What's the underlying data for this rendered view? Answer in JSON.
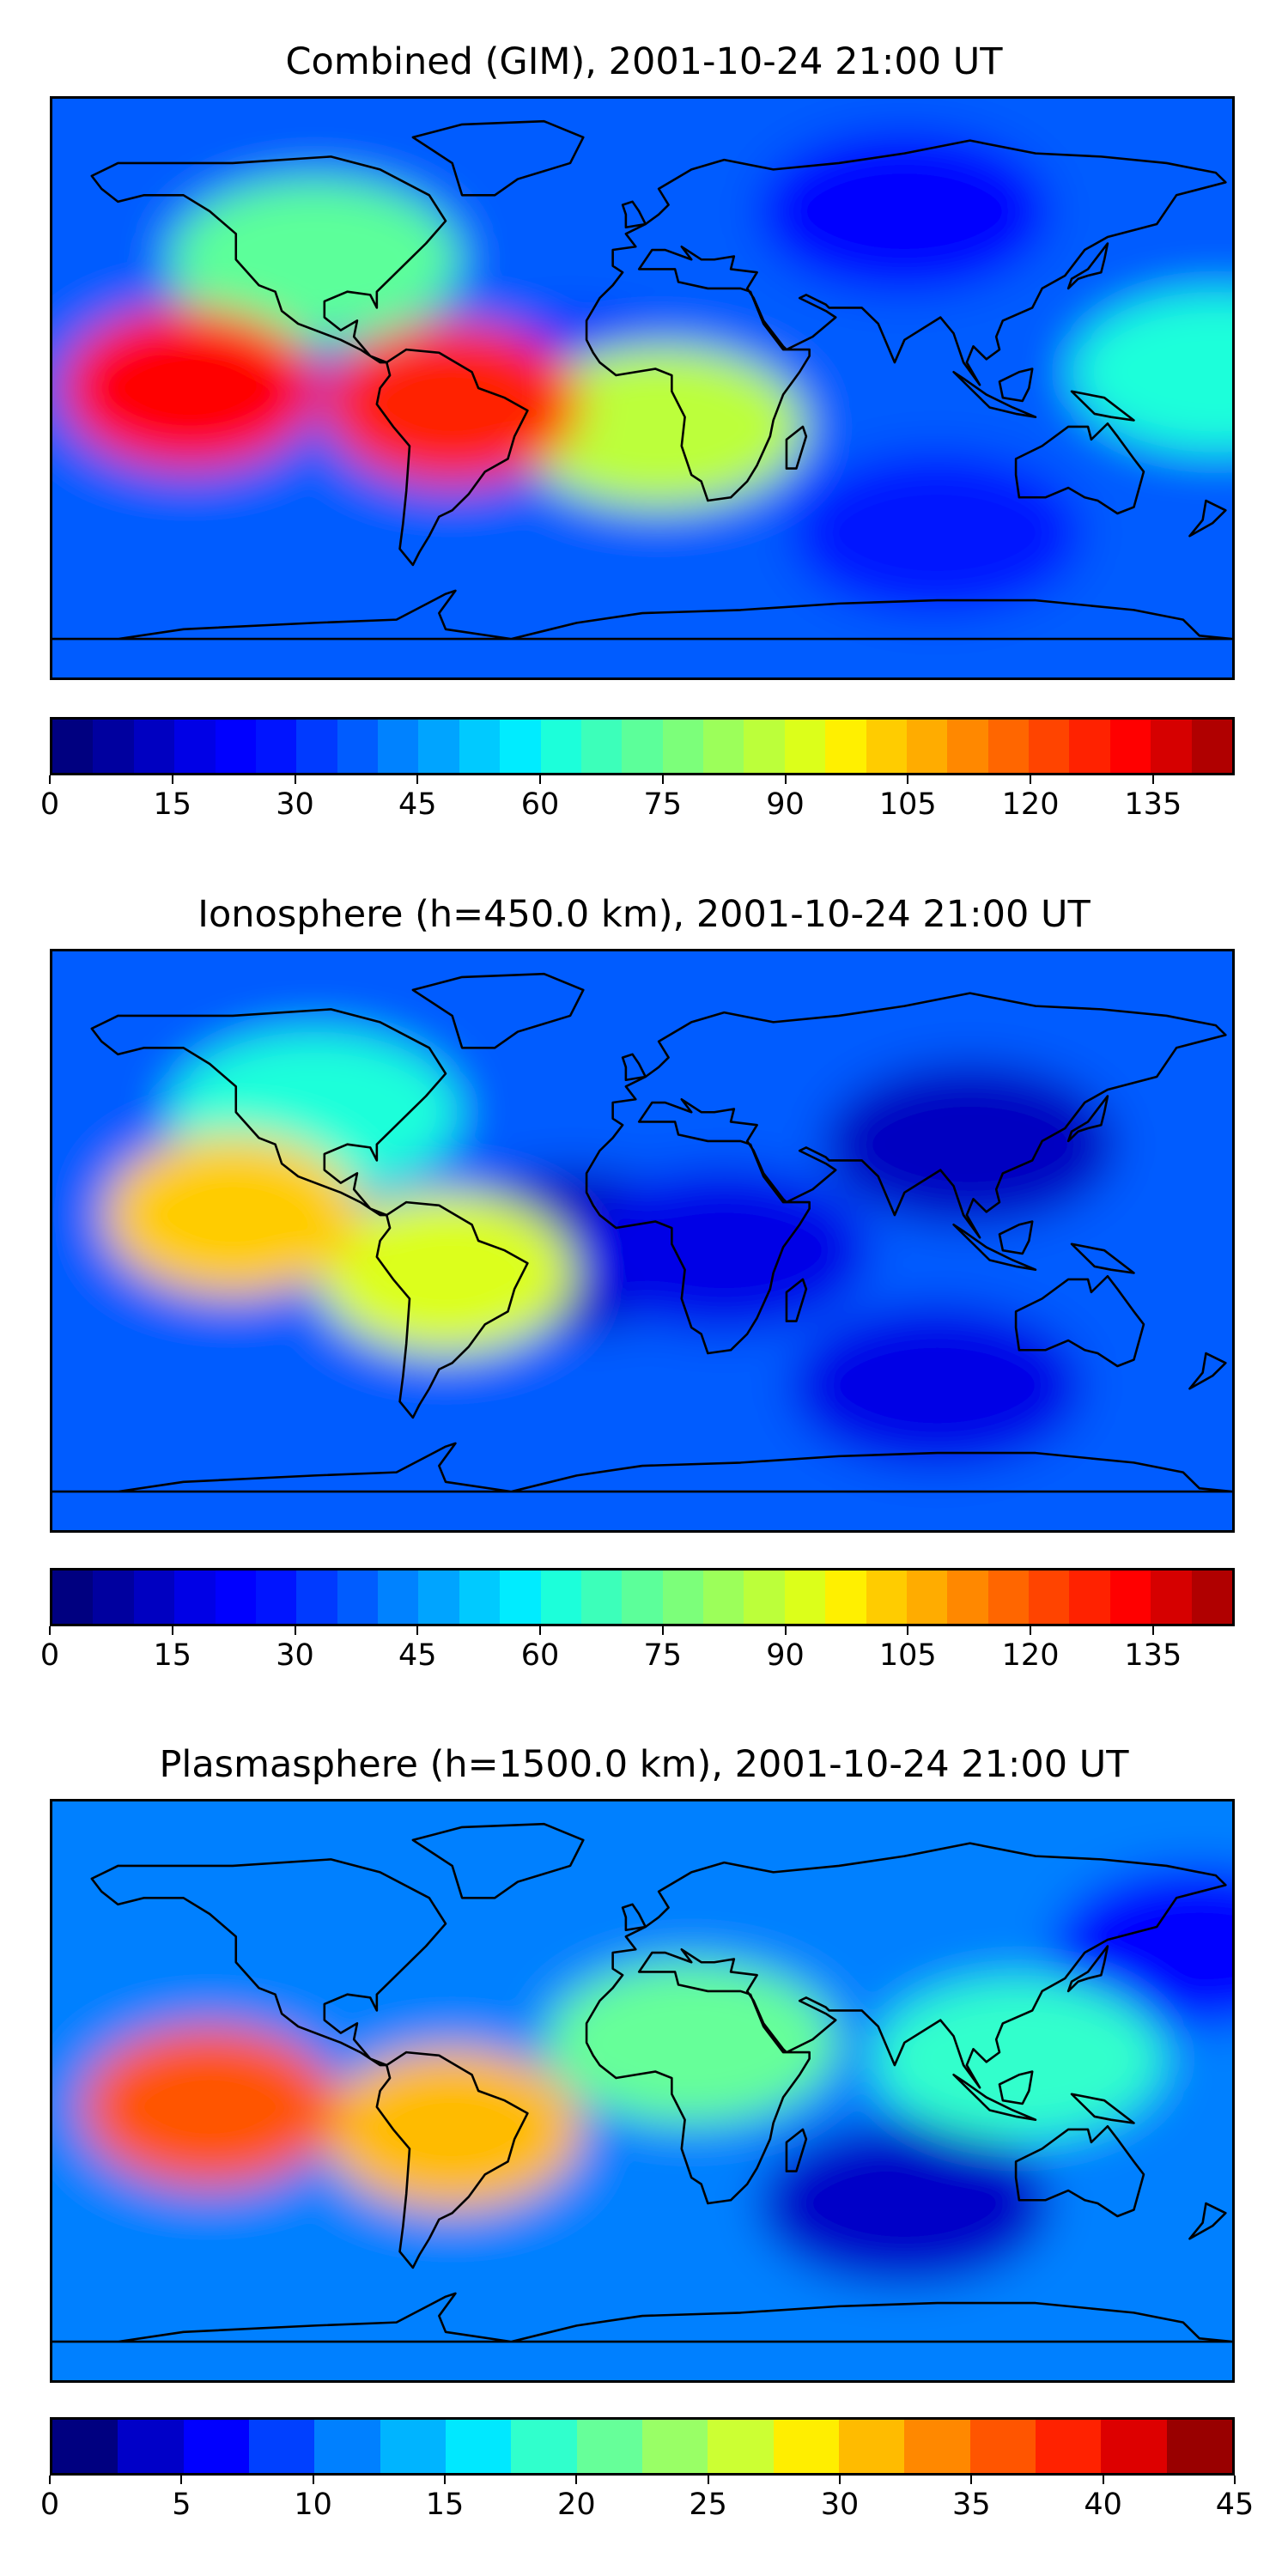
{
  "chart_data": [
    {
      "type": "heatmap",
      "title": "Combined (GIM), 2001-10-24 21:00 UT",
      "colorbar": {
        "min": 0,
        "max": 145,
        "step": 5,
        "ticks": [
          "0",
          "15",
          "30",
          "45",
          "60",
          "75",
          "90",
          "105",
          "120",
          "135"
        ]
      },
      "features": [
        {
          "name": "hotspot-east-pacific",
          "lon": -138,
          "lat": 0,
          "value": 130
        },
        {
          "name": "hotspot-south-america",
          "lon": -58,
          "lat": -5,
          "value": 125
        },
        {
          "name": "low-gulf-of-guinea",
          "lon": -22,
          "lat": -3,
          "value": 25
        },
        {
          "name": "moderate-south-atlantic",
          "lon": 5,
          "lat": -12,
          "value": 85
        },
        {
          "name": "moderate-north-america",
          "lon": -100,
          "lat": 40,
          "value": 70
        },
        {
          "name": "low-eurasia",
          "lon": 80,
          "lat": 55,
          "value": 20
        },
        {
          "name": "low-south-indian-ocean",
          "lon": 90,
          "lat": -45,
          "value": 25
        },
        {
          "name": "moderate-west-pacific",
          "lon": 175,
          "lat": 5,
          "value": 60
        }
      ]
    },
    {
      "type": "heatmap",
      "title": "Ionosphere  (h=450.0 km), 2001-10-24 21:00 UT",
      "colorbar": {
        "min": 0,
        "max": 145,
        "step": 5,
        "ticks": [
          "0",
          "15",
          "30",
          "45",
          "60",
          "75",
          "90",
          "105",
          "120",
          "135"
        ]
      },
      "features": [
        {
          "name": "peak-east-pacific",
          "lon": -125,
          "lat": 8,
          "value": 100
        },
        {
          "name": "moderate-south-america",
          "lon": -60,
          "lat": -10,
          "value": 90
        },
        {
          "name": "low-gulf-of-guinea",
          "lon": -22,
          "lat": -3,
          "value": 10
        },
        {
          "name": "low-equatorial-africa",
          "lon": 25,
          "lat": -3,
          "value": 15
        },
        {
          "name": "low-asia",
          "lon": 100,
          "lat": 30,
          "value": 10
        },
        {
          "name": "moderate-north-america",
          "lon": -100,
          "lat": 40,
          "value": 60
        },
        {
          "name": "low-south-indian-ocean",
          "lon": 90,
          "lat": -45,
          "value": 15
        }
      ]
    },
    {
      "type": "heatmap",
      "title": "Plasmasphere (h=1500.0 km), 2001-10-24 21:00 UT",
      "colorbar": {
        "min": 0,
        "max": 45,
        "step": 2.5,
        "ticks": [
          "0",
          "5",
          "10",
          "15",
          "20",
          "25",
          "30",
          "35",
          "40",
          "45"
        ]
      },
      "features": [
        {
          "name": "peak-east-pacific",
          "lon": -132,
          "lat": -5,
          "value": 37
        },
        {
          "name": "peak-south-america",
          "lon": -58,
          "lat": -12,
          "value": 32
        },
        {
          "name": "moderate-africa",
          "lon": 15,
          "lat": 15,
          "value": 22
        },
        {
          "name": "low-gulf-of-guinea",
          "lon": -3,
          "lat": 0,
          "value": 10
        },
        {
          "name": "low-north-pacific",
          "lon": 170,
          "lat": 45,
          "value": 5
        },
        {
          "name": "low-south-indian-ocean",
          "lon": 80,
          "lat": -35,
          "value": 4
        },
        {
          "name": "moderate-east-asia",
          "lon": 115,
          "lat": 10,
          "value": 18
        }
      ]
    }
  ]
}
